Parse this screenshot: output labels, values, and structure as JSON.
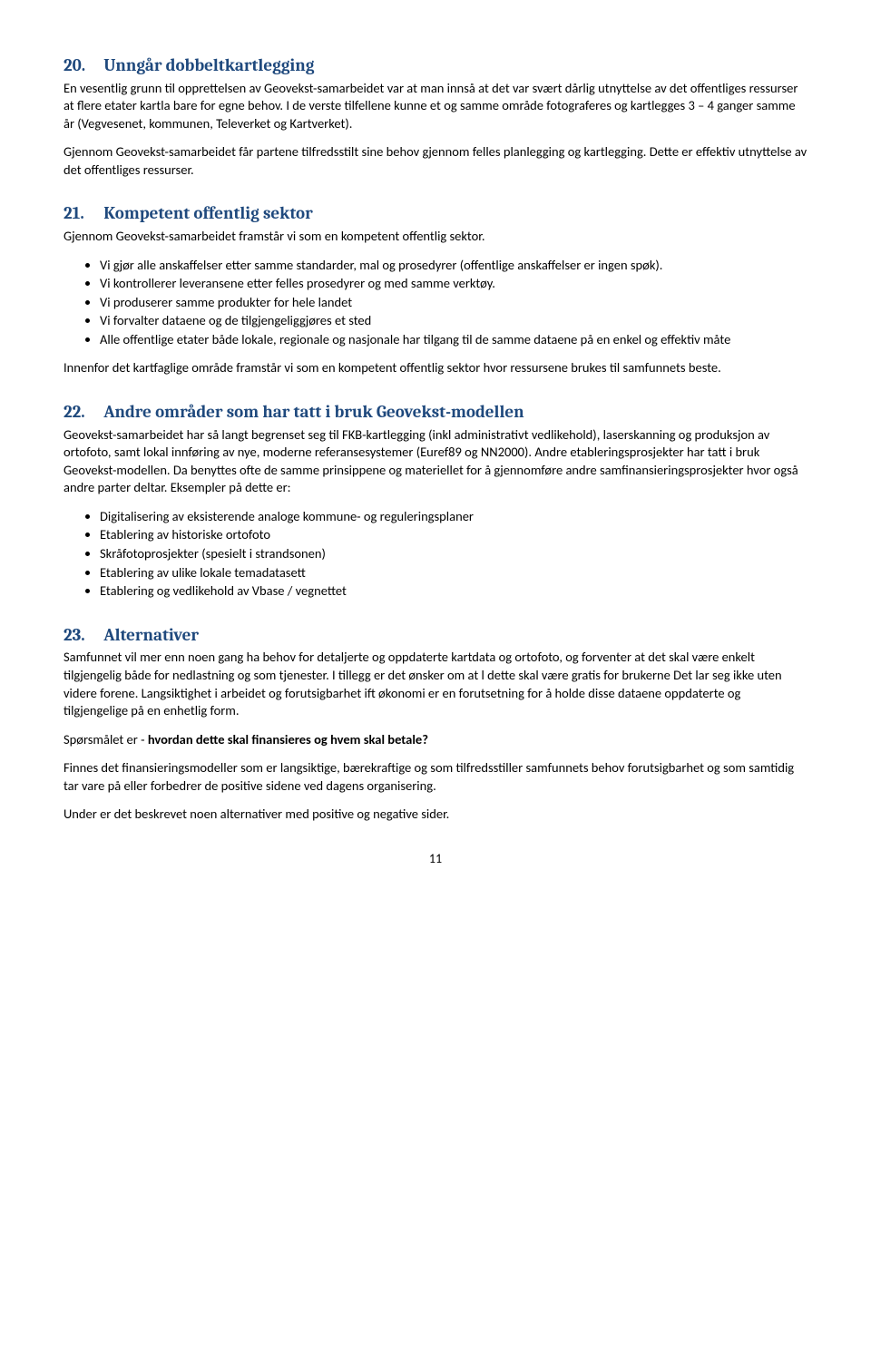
{
  "s20": {
    "heading_num": "20.",
    "heading_text": "Unngår dobbeltkartlegging",
    "p1": "En vesentlig grunn til opprettelsen av Geovekst-samarbeidet var at man innså at det var svært dårlig utnyttelse av det offentliges ressurser at flere etater kartla bare for egne behov. I de verste tilfellene kunne et og samme område fotograferes og kartlegges 3 – 4 ganger samme år (Vegvesenet, kommunen, Televerket og Kartverket).",
    "p2": "Gjennom Geovekst-samarbeidet får partene tilfredsstilt sine behov gjennom felles planlegging og kartlegging. Dette er effektiv utnyttelse av det offentliges ressurser."
  },
  "s21": {
    "heading_num": "21.",
    "heading_text": "Kompetent offentlig sektor",
    "p1": "Gjennom Geovekst-samarbeidet framstår vi som en kompetent offentlig sektor.",
    "bullets": [
      "Vi gjør alle anskaffelser etter samme standarder, mal og prosedyrer (offentlige anskaffelser er ingen spøk).",
      "Vi kontrollerer leveransene etter felles prosedyrer og med samme verktøy.",
      "Vi produserer samme produkter for hele landet",
      "Vi forvalter dataene og de tilgjengeliggjøres et sted",
      "Alle offentlige etater både lokale, regionale og nasjonale har tilgang til de samme dataene på en enkel og effektiv måte"
    ],
    "p2": "Innenfor det kartfaglige område framstår vi som en kompetent offentlig sektor hvor ressursene brukes til samfunnets beste."
  },
  "s22": {
    "heading_num": "22.",
    "heading_text": "Andre områder som har tatt i bruk Geovekst-modellen",
    "p1": "Geovekst-samarbeidet har så langt begrenset seg til FKB-kartlegging (inkl administrativt vedlikehold), laserskanning og produksjon av ortofoto, samt lokal innføring av nye, moderne referansesystemer (Euref89 og NN2000). Andre etableringsprosjekter har tatt i bruk Geovekst-modellen. Da benyttes ofte de samme prinsippene og materiellet for å gjennomføre andre samfinansieringsprosjekter hvor også andre parter deltar. Eksempler på dette er:",
    "bullets": [
      "Digitalisering av eksisterende analoge kommune- og reguleringsplaner",
      "Etablering av historiske ortofoto",
      "Skråfotoprosjekter (spesielt i strandsonen)",
      "Etablering av ulike lokale temadatasett",
      "Etablering og vedlikehold av Vbase / vegnettet"
    ]
  },
  "s23": {
    "heading_num": "23.",
    "heading_text": "Alternativer",
    "p1": "Samfunnet vil mer enn noen gang ha behov for detaljerte og oppdaterte kartdata og ortofoto, og forventer at det skal være enkelt tilgjengelig både for nedlastning og som tjenester. I tillegg er det ønsker om at l dette skal være gratis for brukerne Det lar seg ikke uten videre forene. Langsiktighet i arbeidet og forutsigbarhet ift økonomi er en forutsetning for å holde disse dataene oppdaterte og tilgjengelige på en enhetlig form.",
    "p2_pre": "Spørsmålet er - ",
    "p2_bold": "hvordan dette skal finansieres og hvem skal betale?",
    "p3": "Finnes det finansieringsmodeller som er langsiktige, bærekraftige og som tilfredsstiller samfunnets behov forutsigbarhet og som samtidig tar vare på eller forbedrer de positive sidene ved dagens organisering.",
    "p4": "Under er det beskrevet noen alternativer med positive og negative sider."
  },
  "page_number": "11"
}
